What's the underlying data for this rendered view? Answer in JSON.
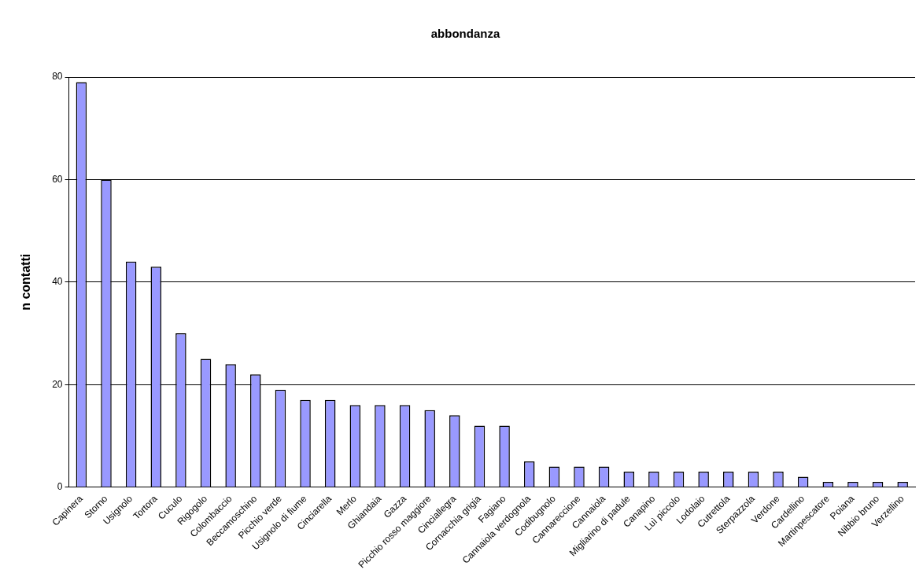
{
  "chart_data": {
    "type": "bar",
    "title": "abbondanza",
    "ylabel": "n contatti",
    "categories": [
      "Capinera",
      "Storno",
      "Usignolo",
      "Tortora",
      "Cuculo",
      "Rigogolo",
      "Colombaccio",
      "Beccamoschino",
      "Picchio verde",
      "Usignolo di fiume",
      "Cinciarella",
      "Merlo",
      "Ghiandaia",
      "Gazza",
      "Picchio rosso maggiore",
      "Cinciallegra",
      "Cornacchia grigia",
      "Fagiano",
      "Cannaiola verdognola",
      "Codibugnolo",
      "Cannareccione",
      "Cannaiola",
      "Migliarino di padule",
      "Canapino",
      "Luì piccolo",
      "Lodolaio",
      "Cutrettola",
      "Sterpazzola",
      "Verdone",
      "Cardellino",
      "Martinpescatore",
      "Poiana",
      "Nibbio bruno",
      "Verzellino"
    ],
    "values": [
      79,
      60,
      44,
      43,
      30,
      25,
      24,
      22,
      19,
      17,
      17,
      16,
      16,
      16,
      15,
      14,
      12,
      12,
      5,
      4,
      4,
      4,
      3,
      3,
      3,
      3,
      3,
      3,
      3,
      2,
      1,
      1,
      1,
      1
    ],
    "color": "#9999ff",
    "ylim": [
      0,
      80
    ],
    "yticks": [
      0,
      20,
      40,
      60,
      80
    ],
    "grid": "y"
  }
}
